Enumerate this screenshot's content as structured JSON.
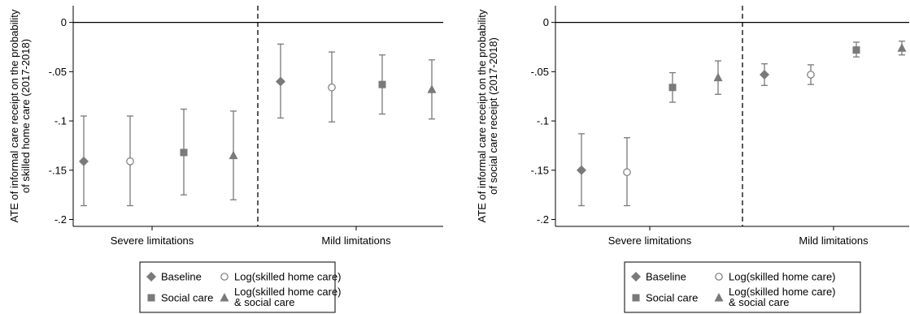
{
  "chart_data": [
    {
      "type": "scatter",
      "ylabel_lines": [
        "ATE of informal care receipt on the probability",
        "of skilled home care (2017-2018)"
      ],
      "ylim": [
        -0.207,
        0.017
      ],
      "yticks": [
        0,
        -0.05,
        -0.1,
        -0.15,
        -0.2
      ],
      "ytick_labels": [
        "0",
        "-.05",
        "-.1",
        "-.15",
        "-.2"
      ],
      "reference_line": 0,
      "groups": [
        {
          "label": "Severe limitations",
          "points": [
            {
              "series": "baseline",
              "value": -0.141,
              "ci": [
                -0.186,
                -0.095
              ]
            },
            {
              "series": "log_skilled",
              "value": -0.141,
              "ci": [
                -0.186,
                -0.095
              ]
            },
            {
              "series": "social_care",
              "value": -0.132,
              "ci": [
                -0.175,
                -0.088
              ]
            },
            {
              "series": "log_social",
              "value": -0.135,
              "ci": [
                -0.18,
                -0.09
              ]
            }
          ]
        },
        {
          "label": "Mild limitations",
          "points": [
            {
              "series": "baseline",
              "value": -0.06,
              "ci": [
                -0.097,
                -0.022
              ]
            },
            {
              "series": "log_skilled",
              "value": -0.066,
              "ci": [
                -0.101,
                -0.03
              ]
            },
            {
              "series": "social_care",
              "value": -0.063,
              "ci": [
                -0.093,
                -0.033
              ]
            },
            {
              "series": "log_social",
              "value": -0.068,
              "ci": [
                -0.098,
                -0.038
              ]
            }
          ]
        }
      ]
    },
    {
      "type": "scatter",
      "ylabel_lines": [
        "ATE of informal care receipt on the probability",
        "of social care receipt (2017-2018)"
      ],
      "ylim": [
        -0.207,
        0.017
      ],
      "yticks": [
        0,
        -0.05,
        -0.1,
        -0.15,
        -0.2
      ],
      "ytick_labels": [
        "0",
        "-.05",
        "-.1",
        "-.15",
        "-.2"
      ],
      "reference_line": 0,
      "groups": [
        {
          "label": "Severe limitations",
          "points": [
            {
              "series": "baseline",
              "value": -0.15,
              "ci": [
                -0.186,
                -0.113
              ]
            },
            {
              "series": "log_skilled",
              "value": -0.152,
              "ci": [
                -0.186,
                -0.117
              ]
            },
            {
              "series": "social_care",
              "value": -0.066,
              "ci": [
                -0.081,
                -0.051
              ]
            },
            {
              "series": "log_social",
              "value": -0.056,
              "ci": [
                -0.073,
                -0.039
              ]
            }
          ]
        },
        {
          "label": "Mild limitations",
          "points": [
            {
              "series": "baseline",
              "value": -0.053,
              "ci": [
                -0.064,
                -0.042
              ]
            },
            {
              "series": "log_skilled",
              "value": -0.053,
              "ci": [
                -0.063,
                -0.043
              ]
            },
            {
              "series": "social_care",
              "value": -0.028,
              "ci": [
                -0.035,
                -0.02
              ]
            },
            {
              "series": "log_social",
              "value": -0.026,
              "ci": [
                -0.033,
                -0.019
              ]
            }
          ]
        }
      ]
    }
  ],
  "legend": {
    "items": [
      {
        "key": "baseline",
        "marker": "diamond",
        "label_lines": [
          "Baseline"
        ]
      },
      {
        "key": "log_skilled",
        "marker": "circle",
        "label_lines": [
          "Log(skilled home care)"
        ]
      },
      {
        "key": "social_care",
        "marker": "square",
        "label_lines": [
          "Social care"
        ]
      },
      {
        "key": "log_social",
        "marker": "triangle",
        "label_lines": [
          "Log(skilled home care)",
          "& social care"
        ]
      }
    ]
  },
  "colors": {
    "marker": "#7a7a7a",
    "ci": "#7a7a7a",
    "axis": "#000000"
  }
}
